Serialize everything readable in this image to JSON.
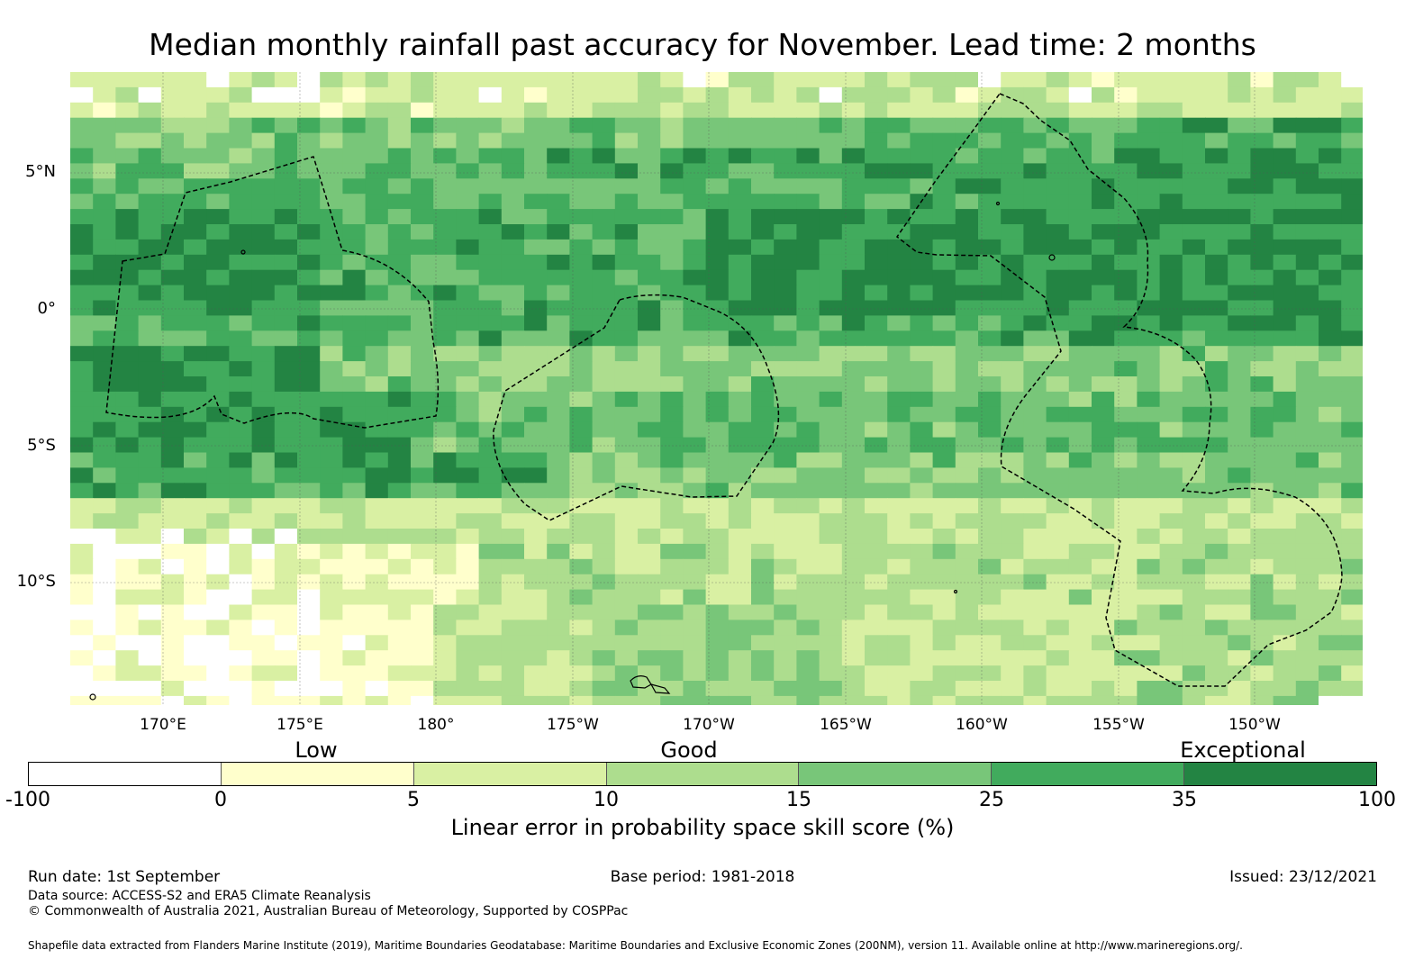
{
  "figure": {
    "title": "Median monthly rainfall past accuracy for November. Lead time: 2 months"
  },
  "map": {
    "lat_labels": [
      "5°N",
      "0°",
      "5°S",
      "10°S"
    ],
    "lon_labels": [
      "170°E",
      "175°E",
      "180°",
      "175°W",
      "170°W",
      "165°W",
      "160°W",
      "155°W",
      "150°W"
    ],
    "colors": [
      "#ffffff",
      "#ffffcc",
      "#d9f0a3",
      "#addd8e",
      "#78c679",
      "#41ab5d",
      "#238443"
    ]
  },
  "legend": {
    "band_labels": [
      "Low",
      "Good",
      "Exceptional"
    ],
    "ticks": [
      "-100",
      "0",
      "5",
      "10",
      "15",
      "25",
      "35",
      "100"
    ],
    "label": "Linear error in probability space skill score (%)"
  },
  "footer": {
    "run_date": "Run date: 1st September",
    "base_period": "Base period: 1981-2018",
    "issued": "Issued: 23/12/2021",
    "data_source": "Data source: ACCESS-S2 and ERA5 Climate Reanalysis",
    "copyright": "© Commonwealth of Australia 2021, Australian Bureau of Meteorology, Supported by COSPPac",
    "shapefile": "Shapefile data extracted from Flanders Marine Institute (2019), Maritime Boundaries Geodatabase: Maritime Boundaries and Exclusive Economic Zones (200NM), version 11. Available online at http://www.marineregions.org/."
  }
}
